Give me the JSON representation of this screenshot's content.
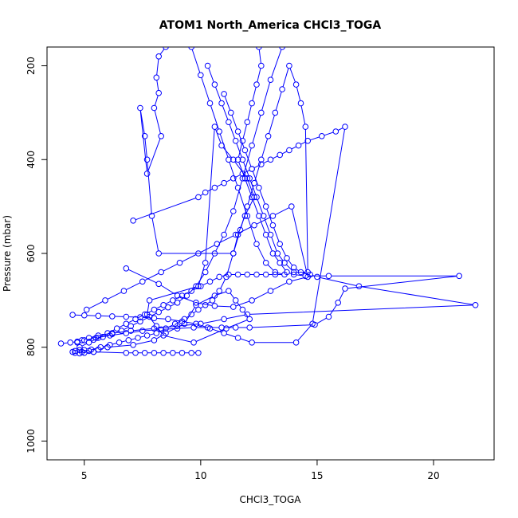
{
  "chart_data": {
    "type": "line",
    "title": "ATOM1 North_America CHCl3_TOGA",
    "xlabel": "CHCl3_TOGA",
    "ylabel": "Pressure (mbar)",
    "xlim": [
      3.4,
      22.6
    ],
    "ylim": [
      1040,
      160
    ],
    "y_inverted": true,
    "grid": false,
    "x_ticks": [
      5,
      10,
      15,
      20
    ],
    "y_ticks": [
      200,
      400,
      600,
      800,
      1000
    ],
    "series_color": "#0000ff",
    "marker": "open-circle",
    "series": [
      {
        "x": [
          8.5,
          8.2,
          8.1,
          8.2,
          8.0,
          8.3,
          7.7,
          7.4,
          7.6,
          7.7,
          7.9,
          8.2,
          11.4,
          11.6,
          11.9,
          12.3,
          12.0,
          11.4,
          10.9,
          10.6,
          10.2,
          9.9,
          7.8,
          7.7,
          8.1,
          8.4,
          9.7,
          11.1,
          12.1,
          11.8,
          11.5,
          11.2,
          10.6,
          9.8,
          9.3,
          8.5,
          8.0,
          7.1,
          6.0,
          5.6,
          5.4,
          5.0,
          4.8,
          4.6,
          4.5,
          4.6,
          4.8,
          5.0,
          5.2,
          5.4,
          6.8,
          7.2,
          7.6,
          8.0,
          8.4,
          8.8,
          9.2,
          9.6,
          9.9
        ],
        "y": [
          160,
          180,
          225,
          258,
          290,
          350,
          430,
          290,
          350,
          400,
          520,
          600,
          600,
          560,
          520,
          480,
          440,
          400,
          370,
          330,
          620,
          670,
          700,
          730,
          755,
          775,
          790,
          760,
          740,
          720,
          700,
          680,
          690,
          710,
          750,
          770,
          785,
          795,
          800,
          805,
          810,
          812,
          813,
          812,
          810,
          808,
          806,
          806,
          808,
          810,
          812,
          812,
          812,
          812,
          812,
          812,
          812,
          812,
          812
        ]
      },
      {
        "x": [
          12.5,
          12.6,
          12.4,
          12.2,
          12.0,
          11.8,
          11.6,
          11.9,
          12.2,
          12.5,
          12.8,
          13.1,
          13.4,
          13.7,
          14.0,
          14.5,
          15.5,
          21.1,
          16.2,
          15.9,
          15.5,
          14.9,
          12.1,
          11.5,
          10.9,
          10.3,
          9.7,
          9.0,
          8.3,
          7.5,
          6.8,
          6.1,
          5.5,
          5.0,
          4.7,
          4.4,
          4.0
        ],
        "y": [
          160,
          200,
          240,
          280,
          320,
          360,
          400,
          440,
          480,
          520,
          560,
          600,
          620,
          640,
          645,
          648,
          648,
          648,
          675,
          705,
          735,
          752,
          758,
          758,
          758,
          758,
          758,
          760,
          762,
          765,
          770,
          775,
          780,
          785,
          788,
          790,
          792
        ]
      },
      {
        "x": [
          11.0,
          11.3,
          11.6,
          11.9,
          12.2,
          12.5,
          12.8,
          13.1,
          13.4,
          13.7,
          14.0,
          14.3,
          14.7,
          15.0,
          16.8,
          21.8,
          12.0,
          11.0,
          10.0,
          9.0,
          8.0,
          7.0,
          6.2,
          5.6,
          5.2,
          4.9,
          4.7
        ],
        "y": [
          260,
          300,
          340,
          380,
          420,
          460,
          500,
          540,
          580,
          610,
          630,
          640,
          645,
          650,
          670,
          710,
          730,
          740,
          750,
          755,
          760,
          765,
          770,
          775,
          780,
          785,
          790
        ]
      },
      {
        "x": [
          10.3,
          10.6,
          10.9,
          11.2,
          11.5,
          11.8,
          12.1,
          12.4,
          12.7,
          13.0,
          13.3,
          13.6,
          14.0,
          14.6,
          14.5,
          14.3,
          14.1,
          13.8,
          13.5,
          13.2,
          12.9,
          12.6,
          12.3,
          12.0,
          11.7,
          11.4,
          11.1,
          10.8,
          10.5,
          10.2,
          9.9,
          9.6,
          9.3,
          8.9,
          8.5,
          8.1,
          7.7,
          7.3,
          6.9,
          6.5,
          6.1,
          5.7,
          5.3,
          4.9
        ],
        "y": [
          200,
          240,
          280,
          320,
          360,
          400,
          440,
          480,
          520,
          560,
          600,
          620,
          640,
          640,
          330,
          280,
          240,
          200,
          250,
          300,
          350,
          400,
          450,
          500,
          550,
          600,
          650,
          680,
          700,
          710,
          720,
          730,
          740,
          750,
          760,
          770,
          775,
          780,
          785,
          790,
          795,
          800,
          805,
          810
        ]
      },
      {
        "x": [
          7.1,
          9.9,
          10.2,
          10.6,
          11.0,
          11.4,
          11.8,
          12.2,
          12.6,
          13.0,
          13.4,
          13.8,
          14.2,
          14.6,
          15.2,
          15.8,
          16.2,
          14.8,
          14.1,
          12.2,
          11.6,
          11.0,
          10.4,
          9.8,
          9.2,
          8.6,
          8.0,
          7.4,
          6.8,
          6.2,
          5.6,
          5.0,
          4.5
        ],
        "y": [
          530,
          480,
          470,
          460,
          450,
          440,
          430,
          420,
          410,
          400,
          390,
          380,
          370,
          360,
          350,
          340,
          330,
          750,
          790,
          790,
          780,
          770,
          760,
          750,
          745,
          740,
          738,
          736,
          735,
          734,
          733,
          732,
          731
        ]
      },
      {
        "x": [
          9.6,
          10.0,
          10.4,
          10.8,
          11.2,
          11.6,
          12.0,
          12.4,
          12.8,
          13.2,
          13.6,
          13.2,
          12.8,
          12.4,
          12.0,
          11.6,
          11.2,
          10.8,
          10.4,
          10.0,
          9.6,
          9.2,
          8.8,
          8.4,
          8.0,
          7.6,
          7.2,
          6.8,
          6.4,
          6.0,
          5.6,
          5.2,
          4.8
        ],
        "y": [
          160,
          220,
          280,
          340,
          400,
          460,
          520,
          580,
          620,
          640,
          645,
          645,
          645,
          645,
          645,
          645,
          645,
          650,
          660,
          670,
          680,
          690,
          700,
          710,
          720,
          730,
          740,
          750,
          760,
          770,
          780,
          790,
          800
        ]
      },
      {
        "x": [
          6.8,
          8.2,
          9.0,
          9.8,
          10.6,
          11.4,
          12.2,
          13.0,
          13.8,
          14.6,
          13.9,
          13.1,
          12.3,
          11.5,
          10.7,
          9.9,
          9.1,
          8.3,
          7.5,
          6.7,
          5.9,
          5.1
        ],
        "y": [
          632,
          665,
          690,
          705,
          712,
          714,
          700,
          680,
          660,
          650,
          500,
          520,
          540,
          560,
          580,
          600,
          620,
          640,
          660,
          680,
          700,
          720
        ]
      },
      {
        "x": [
          13.5,
          13.0,
          12.6,
          12.2,
          11.8,
          11.4,
          11.0,
          10.6,
          10.2,
          9.8,
          9.4,
          9.0,
          8.6,
          8.2,
          7.8,
          7.4,
          7.0,
          6.6,
          6.2,
          5.8,
          5.4
        ],
        "y": [
          160,
          230,
          300,
          370,
          440,
          510,
          560,
          600,
          640,
          670,
          690,
          705,
          715,
          725,
          735,
          745,
          755,
          765,
          772,
          778,
          784
        ]
      }
    ]
  }
}
